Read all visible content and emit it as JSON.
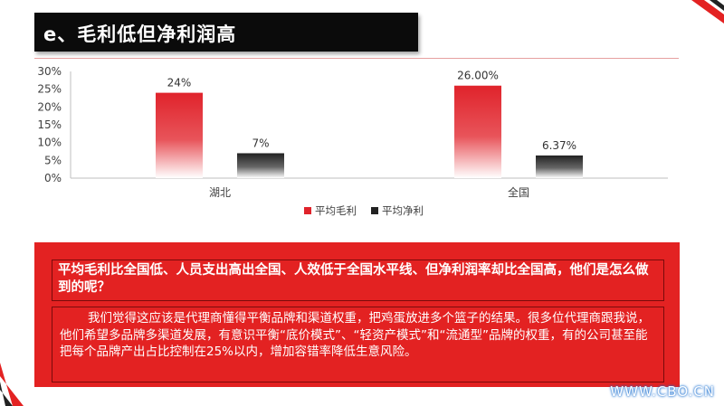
{
  "slide": {
    "title": "e、毛利低但净利润高",
    "question": "平均毛利比全国低、人员支出高出全国、人效低于全国水平线、但净利润率却比全国高，他们是怎么做到的呢？",
    "answer": "我们觉得这应该是代理商懂得平衡品牌和渠道权重，把鸡蛋放进多个篮子的结果。很多位代理商跟我说，他们希望多品牌多渠道发展，有意识平衡“底价模式”、“轻资产模式”和“流通型”品牌的权重，有的公司甚至能把每个品牌产出占比控制在25%以内，增加容错率降低生意风险。",
    "watermark": "WWW.CBO.CN"
  },
  "colors": {
    "accent_red": "#e32222",
    "title_bg": "#0b0b0b",
    "gross_bar": "#e0232b",
    "net_bar": "#222222"
  },
  "chart_data": {
    "type": "bar",
    "categories": [
      "湖北",
      "全国"
    ],
    "series": [
      {
        "name": "平均毛利",
        "values": [
          24,
          26
        ],
        "labels": [
          "24%",
          "26.00%"
        ],
        "color": "#e0232b"
      },
      {
        "name": "平均净利",
        "values": [
          7,
          6.37
        ],
        "labels": [
          "7%",
          "6.37%"
        ],
        "color": "#222222"
      }
    ],
    "yticks": [
      "0%",
      "5%",
      "10%",
      "15%",
      "20%",
      "25%",
      "30%"
    ],
    "ylim": [
      0,
      30
    ],
    "legend_position": "bottom",
    "grid": false
  }
}
